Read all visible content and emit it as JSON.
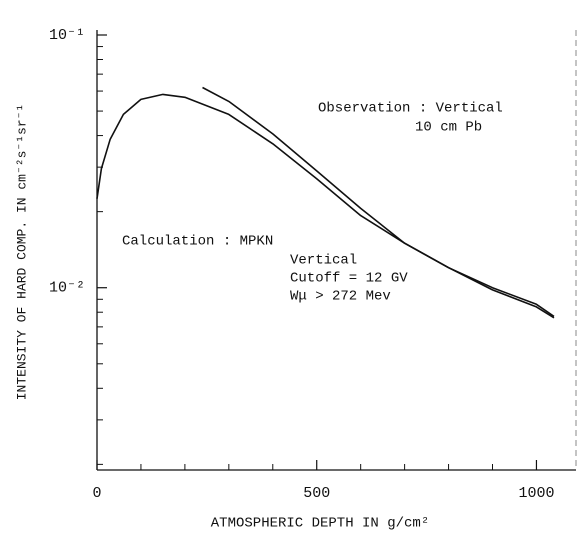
{
  "chart_data": {
    "type": "line",
    "xlabel": "ATMOSPHERIC DEPTH IN g/cm²",
    "ylabel": "INTENSITY OF HARD COMP. IN cm⁻²s⁻¹sr⁻¹",
    "xlim": [
      0,
      1090
    ],
    "ylim": [
      0.0019,
      0.1
    ],
    "yscale": "log",
    "xticks": [
      0,
      500,
      1000
    ],
    "yticks": [
      {
        "value": 0.1,
        "label": "10⁻¹"
      },
      {
        "value": 0.01,
        "label": "10⁻²"
      }
    ],
    "xminor": [
      100,
      200,
      300,
      400,
      600,
      700,
      800,
      900
    ],
    "yminor": [
      0.002,
      0.003,
      0.004,
      0.005,
      0.006,
      0.007,
      0.008,
      0.009,
      0.02,
      0.03,
      0.04,
      0.05,
      0.06,
      0.07,
      0.08,
      0.09
    ],
    "series": [
      {
        "color": "#111111",
        "x": [
          0,
          10,
          30,
          60,
          100,
          150,
          200,
          300,
          400,
          500,
          600,
          700,
          800,
          900,
          1000,
          1040
        ],
        "values": [
          0.0225,
          0.0296,
          0.0387,
          0.0485,
          0.0556,
          0.0582,
          0.0567,
          0.0485,
          0.0371,
          0.027,
          0.0193,
          0.015,
          0.012,
          0.0098,
          0.0084,
          0.0076
        ]
      },
      {
        "color": "#111111",
        "x": [
          240,
          300,
          400,
          500,
          600,
          700,
          800,
          900,
          1000,
          1040
        ],
        "values": [
          0.062,
          0.0546,
          0.0406,
          0.029,
          0.0206,
          0.015,
          0.012,
          0.01,
          0.0086,
          0.0077
        ]
      }
    ],
    "annotations": [
      "Observation : Vertical",
      "10 cm Pb",
      "Calculation : MPKN",
      "Vertical",
      "Cutoff = 12 GV",
      "Wμ > 272 Mev"
    ]
  }
}
